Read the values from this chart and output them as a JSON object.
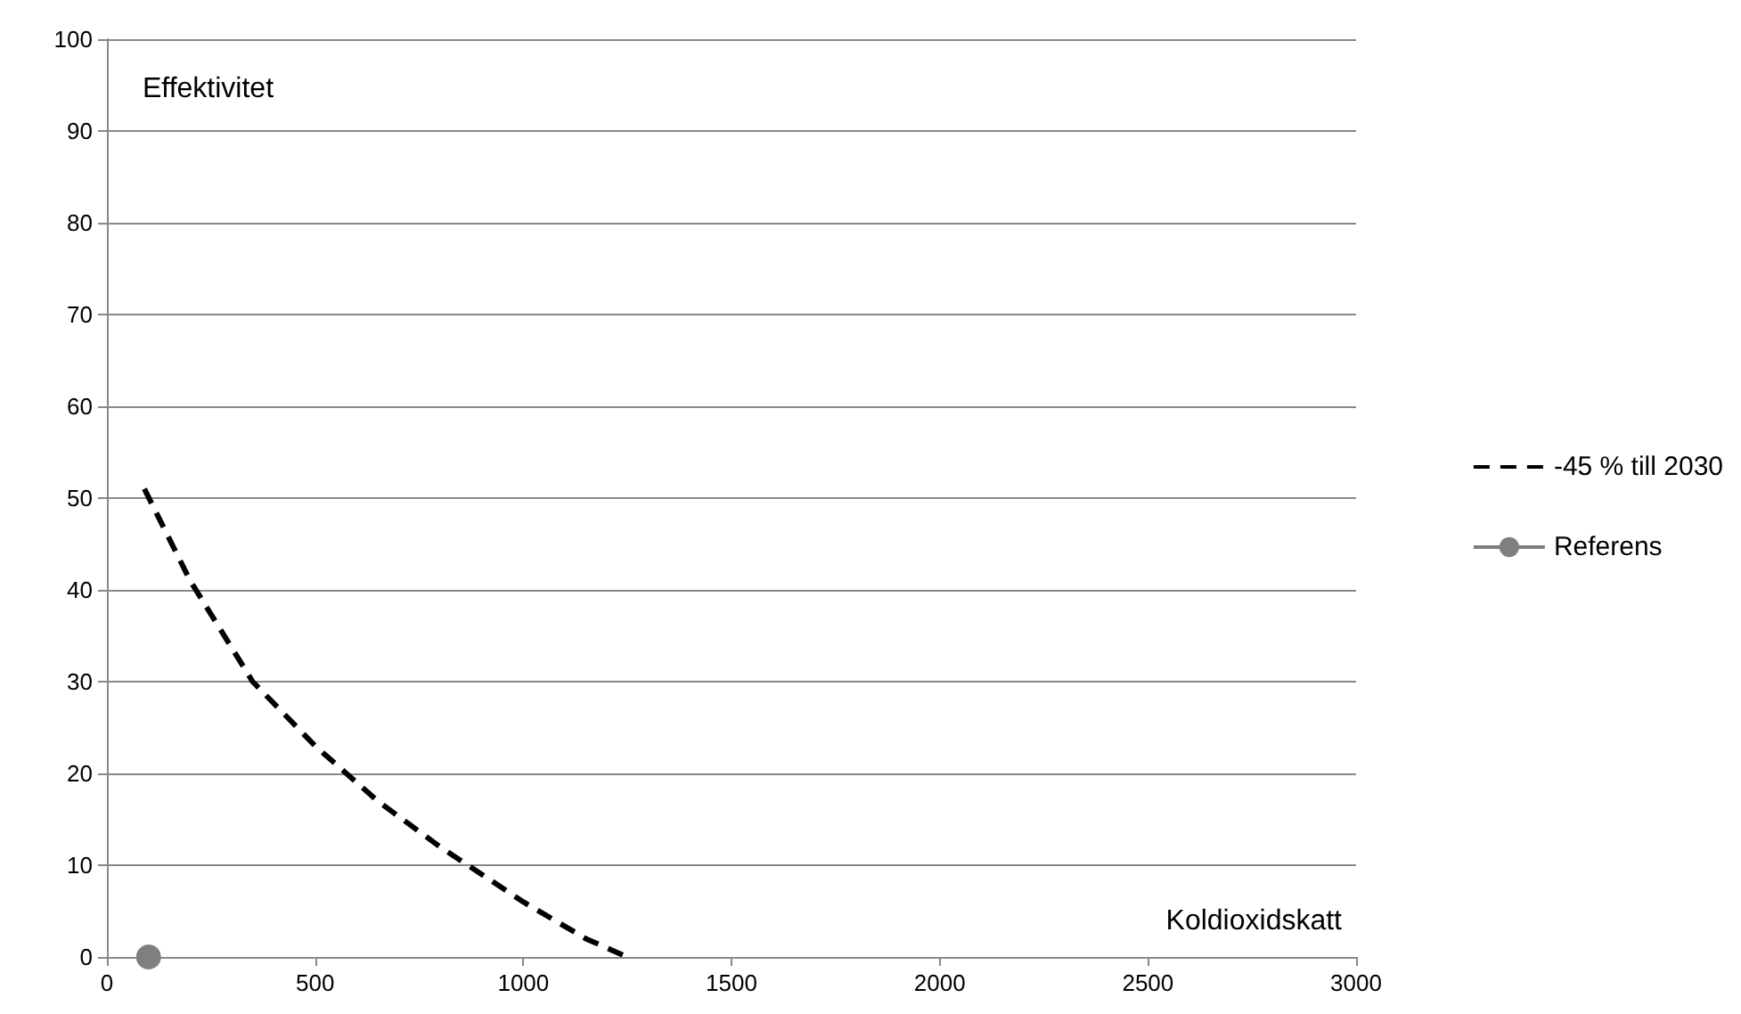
{
  "chart_data": {
    "type": "line",
    "xlabel": "Koldioxidskatt",
    "ylabel": "Effektivitet",
    "xlim": [
      0,
      3000
    ],
    "xticks": [
      0,
      500,
      1000,
      1500,
      2000,
      2500,
      3000
    ],
    "ylim": [
      0,
      100
    ],
    "yticks": [
      0,
      10,
      20,
      30,
      40,
      50,
      60,
      70,
      80,
      90,
      100
    ],
    "grid": "y",
    "legend": "right",
    "series": [
      {
        "name": "-45 % till 2030",
        "color": "#000000",
        "line_style": "dashed",
        "marker": "none",
        "x": [
          90,
          200,
          350,
          500,
          650,
          800,
          1000,
          1150,
          1250
        ],
        "values": [
          51,
          41,
          30,
          23,
          17,
          12,
          6,
          2,
          0
        ]
      },
      {
        "name": "Referens",
        "color": "#7f7f7f",
        "line_style": "solid",
        "marker": "circle",
        "x": [
          100
        ],
        "values": [
          0
        ]
      }
    ]
  }
}
